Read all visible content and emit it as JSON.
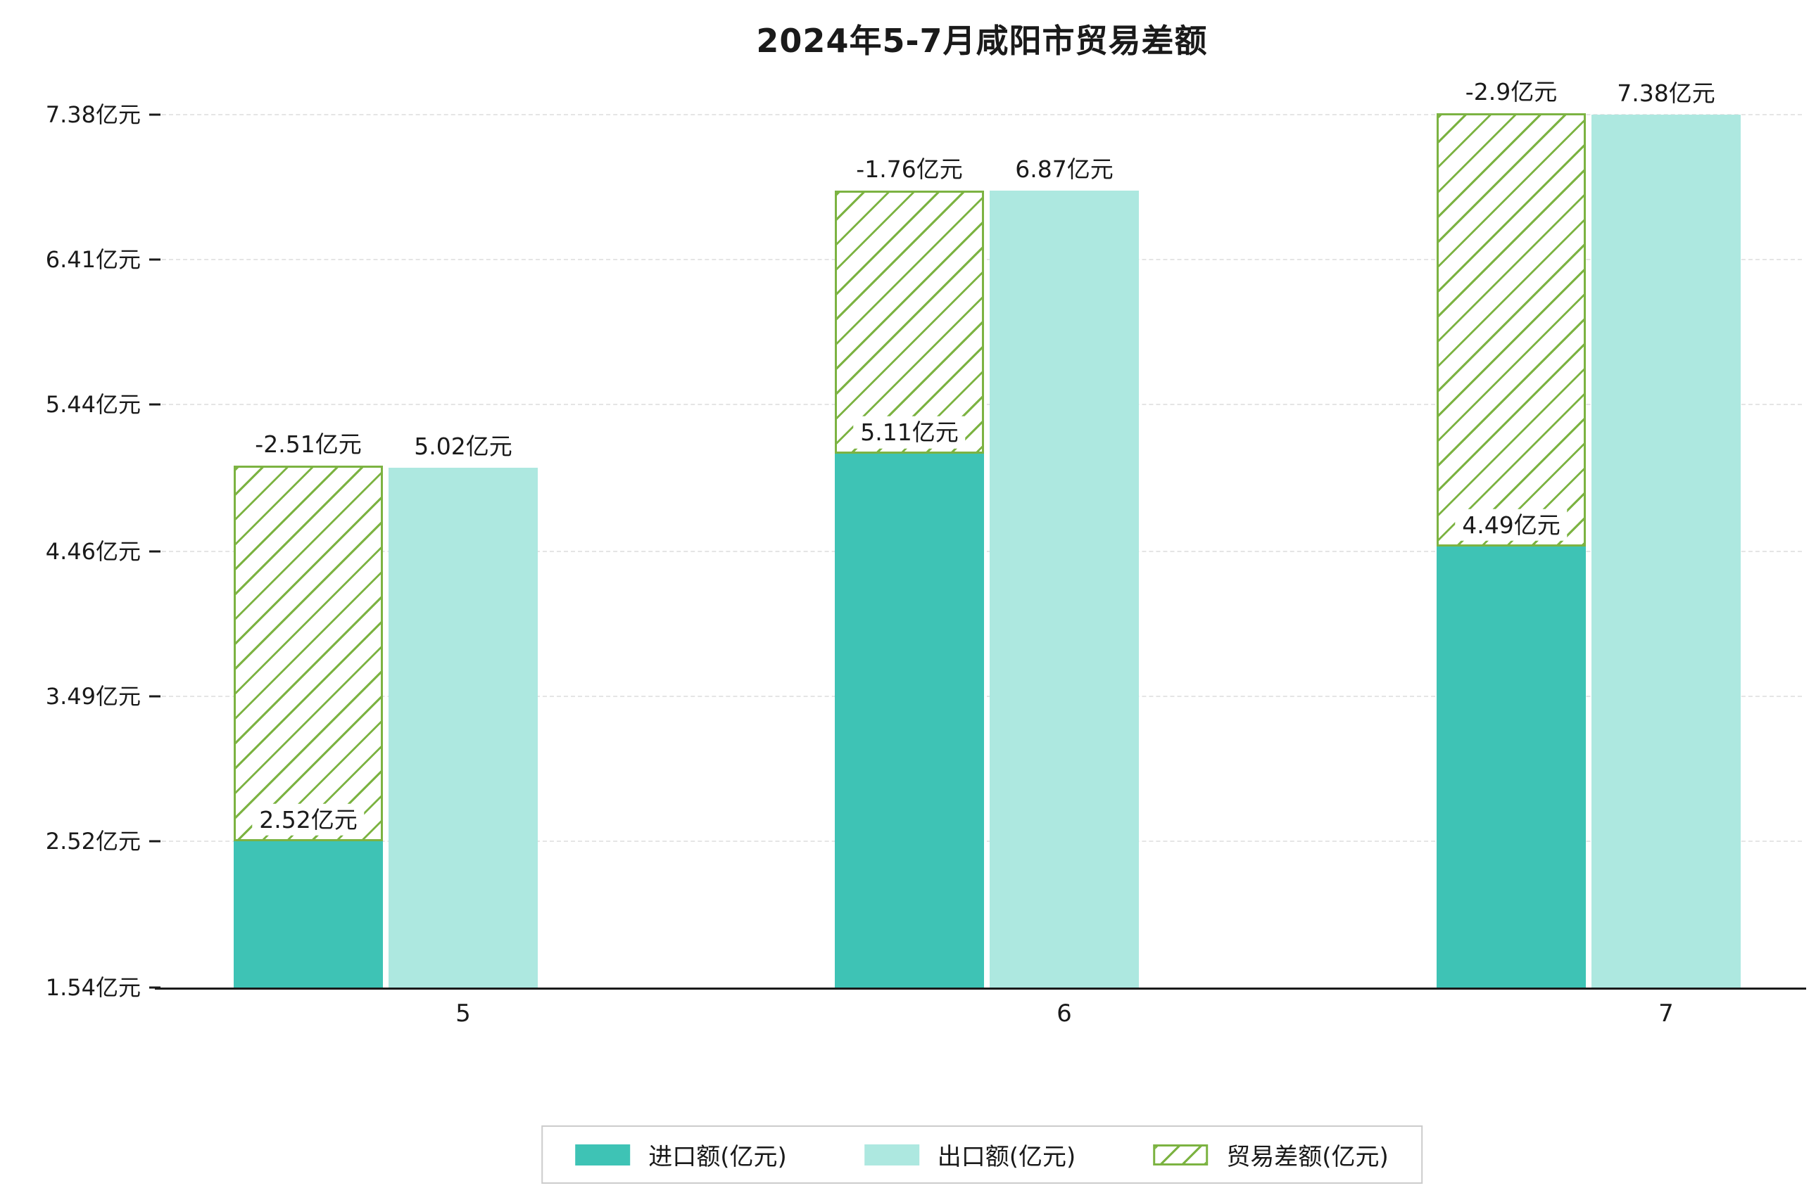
{
  "chart_data": {
    "type": "bar",
    "title": "2024年5-7月咸阳市贸易差额",
    "categories": [
      "5",
      "6",
      "7"
    ],
    "series": [
      {
        "name": "进口额(亿元)",
        "color": "#3ec3b5",
        "values": [
          2.52,
          5.11,
          4.49
        ],
        "labels": [
          "2.52亿元",
          "5.11亿元",
          "4.49亿元"
        ]
      },
      {
        "name": "出口额(亿元)",
        "color": "#ade8e0",
        "values": [
          5.02,
          6.87,
          7.38
        ],
        "labels": [
          "5.02亿元",
          "6.87亿元",
          "7.38亿元"
        ]
      },
      {
        "name": "贸易差额(亿元)",
        "color": "#7cb342",
        "style": "hatched",
        "values": [
          -2.51,
          -1.76,
          -2.9
        ],
        "labels": [
          "-2.51亿元",
          "-1.76亿元",
          "-2.9亿元"
        ]
      }
    ],
    "y_ticks": [
      1.54,
      2.52,
      3.49,
      4.46,
      5.44,
      6.41,
      7.38
    ],
    "y_tick_labels": [
      "1.54亿元",
      "2.52亿元",
      "3.49亿元",
      "4.46亿元",
      "5.44亿元",
      "6.41亿元",
      "7.38亿元"
    ],
    "ylim": [
      1.54,
      7.38
    ],
    "baseline_value": 1.54,
    "grid": "dashed-horizontal",
    "legend_position": "bottom-center"
  }
}
